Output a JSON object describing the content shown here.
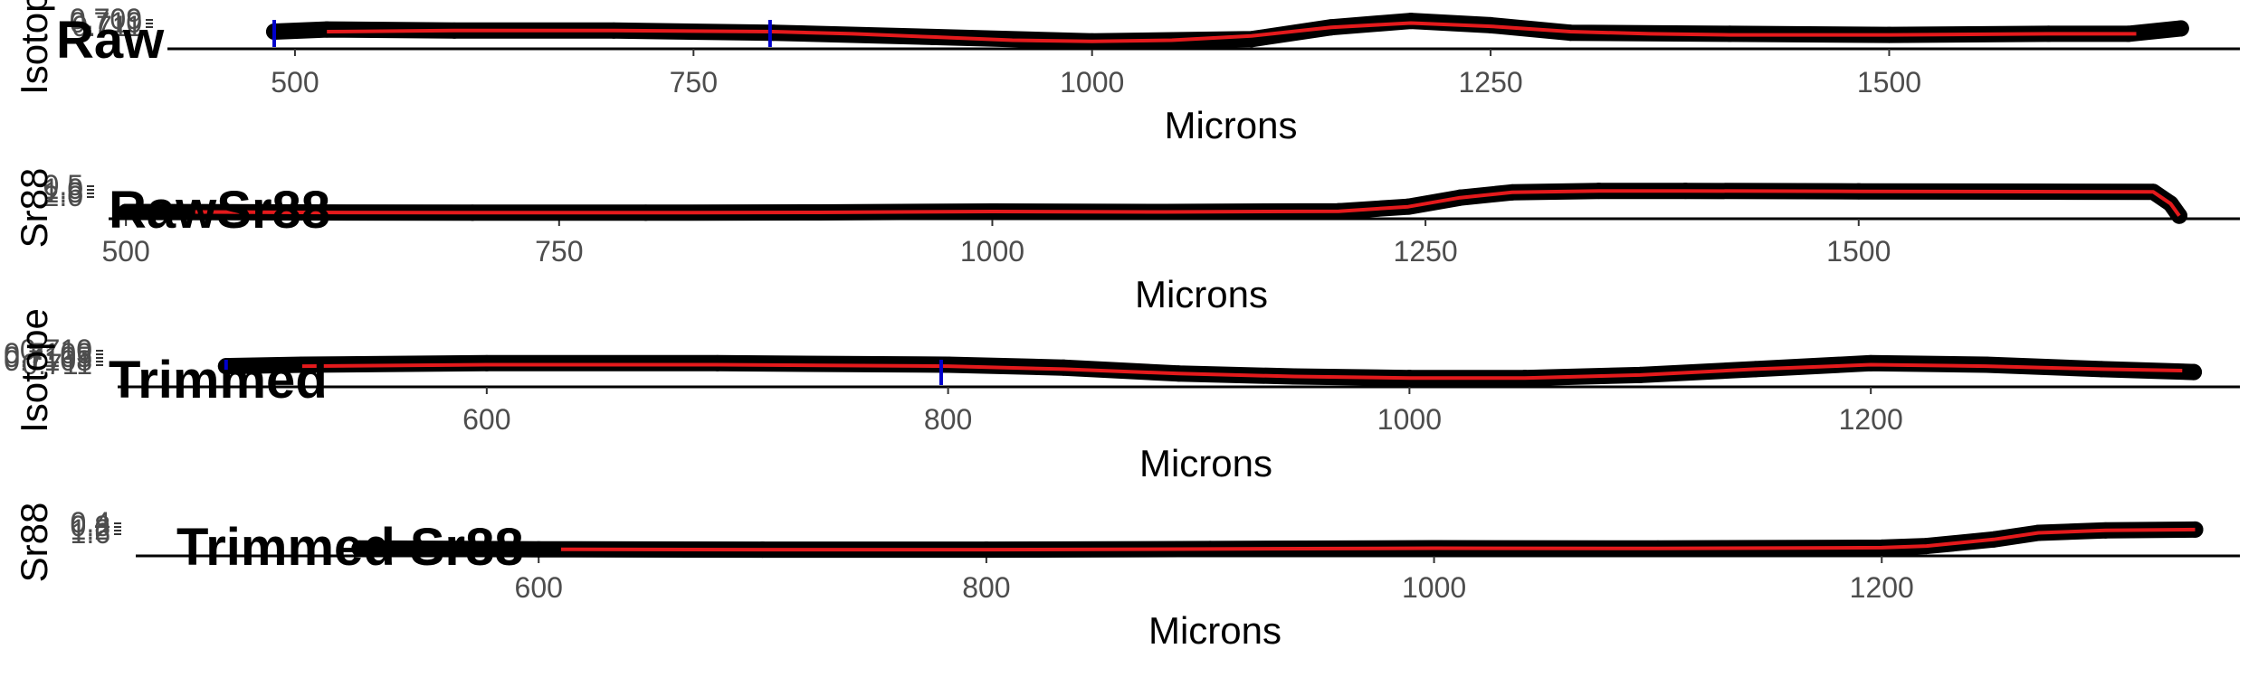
{
  "chart_data": [
    {
      "type": "scatter",
      "title": "Raw",
      "xlabel": "Microns",
      "ylabel": "Isotope",
      "xlim": [
        420,
        1720
      ],
      "ylim": [
        0.7086,
        0.7118
      ],
      "xticks": [
        "500",
        "750",
        "1000",
        "1250",
        "1500"
      ],
      "yticks": [
        "0.711",
        "0.710",
        "0.709"
      ],
      "series": [
        {
          "style": "points",
          "color": "#000000",
          "x": [
            487,
            520,
            600,
            700,
            800,
            900,
            1000,
            1100,
            1150,
            1200,
            1250,
            1300,
            1400,
            1500,
            1600,
            1650,
            1683
          ],
          "y": [
            0.7102,
            0.7104,
            0.7103,
            0.7103,
            0.7101,
            0.7097,
            0.7093,
            0.7095,
            0.7106,
            0.7112,
            0.7108,
            0.7101,
            0.71,
            0.7099,
            0.71,
            0.71,
            0.7105
          ]
        },
        {
          "style": "line",
          "color": "#e41a1c",
          "x": [
            520,
            600,
            700,
            800,
            850,
            900,
            950,
            1000,
            1050,
            1100,
            1150,
            1200,
            1250,
            1300,
            1350,
            1400,
            1500,
            1600,
            1655
          ],
          "y": [
            0.7102,
            0.7103,
            0.7103,
            0.7102,
            0.71,
            0.7097,
            0.7094,
            0.7093,
            0.7094,
            0.7098,
            0.7106,
            0.711,
            0.7107,
            0.7102,
            0.71,
            0.7099,
            0.7099,
            0.71,
            0.71
          ]
        }
      ],
      "vlines": {
        "color": "#0000cc",
        "x": [
          487,
          798
        ]
      }
    },
    {
      "type": "scatter",
      "title": "RawSr88",
      "xlabel": "Microns",
      "ylabel": "Sr88",
      "xlim": [
        490,
        1720
      ],
      "ylim": [
        0.0,
        2.1
      ],
      "xticks": [
        "500",
        "750",
        "1000",
        "1250",
        "1500"
      ],
      "yticks": [
        "2.0",
        "1.5",
        "1.0",
        "0.5"
      ],
      "series": [
        {
          "style": "points",
          "color": "#000000",
          "x": [
            500,
            600,
            700,
            800,
            900,
            1000,
            1100,
            1200,
            1240,
            1270,
            1300,
            1350,
            1400,
            1500,
            1600,
            1670,
            1680,
            1685
          ],
          "y": [
            0.45,
            0.42,
            0.4,
            0.4,
            0.42,
            0.48,
            0.45,
            0.5,
            0.8,
            1.4,
            1.75,
            1.85,
            1.85,
            1.82,
            1.8,
            1.78,
            1.0,
            0.2
          ]
        },
        {
          "style": "line",
          "color": "#e41a1c",
          "x": [
            540,
            600,
            700,
            800,
            900,
            1000,
            1100,
            1200,
            1240,
            1270,
            1300,
            1350,
            1400,
            1500,
            1600,
            1670,
            1680,
            1685
          ],
          "y": [
            0.45,
            0.42,
            0.4,
            0.4,
            0.42,
            0.48,
            0.45,
            0.5,
            0.8,
            1.4,
            1.75,
            1.85,
            1.85,
            1.82,
            1.8,
            1.78,
            1.0,
            0.2
          ]
        }
      ]
    },
    {
      "type": "scatter",
      "title": "Trimmed",
      "xlabel": "Microns",
      "ylabel": "Isotope",
      "xlim": [
        440,
        1360
      ],
      "ylim": [
        0.7096,
        0.7118
      ],
      "xticks": [
        "600",
        "800",
        "1000",
        "1200"
      ],
      "yticks": [
        "0.711",
        "0.7108",
        "0.7105",
        "0.7103",
        "0.710"
      ],
      "series": [
        {
          "style": "points",
          "color": "#000000",
          "x": [
            487,
            520,
            600,
            700,
            800,
            850,
            900,
            950,
            1000,
            1050,
            1100,
            1150,
            1200,
            1250,
            1300,
            1340
          ],
          "y": [
            0.711,
            0.7111,
            0.7112,
            0.7112,
            0.7111,
            0.7109,
            0.7105,
            0.7103,
            0.7102,
            0.7102,
            0.7104,
            0.7108,
            0.7112,
            0.7111,
            0.7108,
            0.7106
          ]
        },
        {
          "style": "line",
          "color": "#e41a1c",
          "x": [
            520,
            600,
            700,
            800,
            850,
            900,
            950,
            1000,
            1050,
            1100,
            1150,
            1200,
            1250,
            1300,
            1335
          ],
          "y": [
            0.711,
            0.7111,
            0.7111,
            0.711,
            0.7108,
            0.7105,
            0.7103,
            0.7102,
            0.7102,
            0.7104,
            0.7108,
            0.7111,
            0.711,
            0.7108,
            0.7107
          ]
        }
      ],
      "vlines": {
        "color": "#0000cc",
        "x": [
          487,
          797
        ]
      }
    },
    {
      "type": "scatter",
      "title": "Trimmed Sr88",
      "xlabel": "Microns",
      "ylabel": "Sr88",
      "xlim": [
        420,
        1360
      ],
      "ylim": [
        0.0,
        1.65
      ],
      "xticks": [
        "600",
        "800",
        "1000",
        "1200"
      ],
      "yticks": [
        "1.6",
        "1.2",
        "0.8",
        "0.4"
      ],
      "series": [
        {
          "style": "points",
          "color": "#000000",
          "x": [
            520,
            600,
            700,
            800,
            900,
            1000,
            1100,
            1200,
            1220,
            1250,
            1270,
            1300,
            1340
          ],
          "y": [
            0.45,
            0.4,
            0.38,
            0.38,
            0.42,
            0.47,
            0.45,
            0.5,
            0.6,
            1.0,
            1.4,
            1.55,
            1.6
          ]
        },
        {
          "style": "line",
          "color": "#e41a1c",
          "x": [
            610,
            700,
            800,
            900,
            1000,
            1100,
            1200,
            1220,
            1250,
            1270,
            1300,
            1340
          ],
          "y": [
            0.4,
            0.38,
            0.38,
            0.42,
            0.47,
            0.45,
            0.5,
            0.6,
            1.0,
            1.4,
            1.55,
            1.6
          ]
        }
      ]
    }
  ]
}
